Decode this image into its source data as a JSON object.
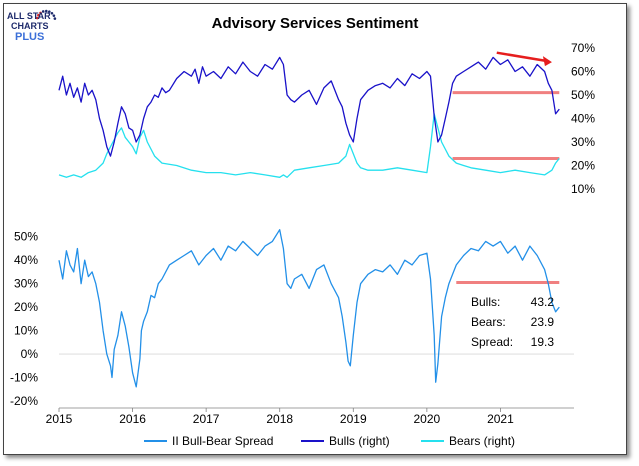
{
  "logo": {
    "line1": "ALL STAR",
    "line2": "CHARTS",
    "line3": "PLUS",
    "brand_color": "#1d2a6b",
    "accent_color": "#3b6fd8",
    "dot_color": "#d62828"
  },
  "colors": {
    "spread": "#2390e8",
    "bulls": "#1a12c9",
    "bears": "#25e0ee",
    "highlight": "#f08080",
    "trend_arrow": "#e61e1e"
  },
  "chart_data": {
    "title": "Advisory Services Sentiment",
    "type": "line",
    "x_axis": {
      "min": 2015.0,
      "max": 2022.0,
      "ticks": [
        "2015",
        "2016",
        "2017",
        "2018",
        "2019",
        "2020",
        "2021"
      ],
      "tick_values": [
        2015,
        2016,
        2017,
        2018,
        2019,
        2020,
        2021
      ]
    },
    "top_panel": {
      "axis": "right",
      "ylim": [
        10,
        70
      ],
      "tick_labels": [
        "70%",
        "60%",
        "50%",
        "40%",
        "30%",
        "20%",
        "10%"
      ],
      "tick_values": [
        70,
        60,
        50,
        40,
        30,
        20,
        10
      ],
      "series": [
        {
          "name": "Bulls (right)",
          "x": [
            2015.0,
            2015.05,
            2015.1,
            2015.15,
            2015.2,
            2015.25,
            2015.3,
            2015.35,
            2015.4,
            2015.45,
            2015.5,
            2015.55,
            2015.6,
            2015.65,
            2015.7,
            2015.75,
            2015.8,
            2015.85,
            2015.9,
            2015.95,
            2016.0,
            2016.05,
            2016.1,
            2016.15,
            2016.2,
            2016.25,
            2016.3,
            2016.35,
            2016.4,
            2016.45,
            2016.5,
            2016.6,
            2016.7,
            2016.8,
            2016.85,
            2016.9,
            2016.95,
            2017.0,
            2017.1,
            2017.2,
            2017.3,
            2017.4,
            2017.5,
            2017.6,
            2017.7,
            2017.8,
            2017.9,
            2018.0,
            2018.05,
            2018.1,
            2018.15,
            2018.2,
            2018.3,
            2018.4,
            2018.5,
            2018.6,
            2018.7,
            2018.8,
            2018.85,
            2018.9,
            2018.95,
            2019.0,
            2019.05,
            2019.1,
            2019.2,
            2019.3,
            2019.4,
            2019.5,
            2019.6,
            2019.7,
            2019.8,
            2019.9,
            2020.0,
            2020.05,
            2020.1,
            2020.15,
            2020.2,
            2020.25,
            2020.3,
            2020.35,
            2020.4,
            2020.5,
            2020.6,
            2020.7,
            2020.8,
            2020.9,
            2021.0,
            2021.1,
            2021.2,
            2021.3,
            2021.4,
            2021.5,
            2021.6,
            2021.65,
            2021.7,
            2021.75,
            2021.8
          ],
          "values": [
            52,
            58,
            50,
            55,
            49,
            53,
            47,
            55,
            50,
            52,
            48,
            40,
            35,
            28,
            24,
            30,
            38,
            45,
            42,
            36,
            35,
            30,
            33,
            40,
            45,
            47,
            50,
            49,
            53,
            51,
            52,
            57,
            60,
            58,
            61,
            55,
            62,
            58,
            60,
            57,
            62,
            59,
            64,
            60,
            58,
            63,
            61,
            66,
            63,
            50,
            48,
            47,
            50,
            52,
            46,
            53,
            56,
            48,
            45,
            38,
            33,
            30,
            40,
            48,
            52,
            54,
            55,
            53,
            57,
            54,
            59,
            57,
            60,
            58,
            41,
            30,
            33,
            40,
            47,
            55,
            58,
            60,
            62,
            64,
            61,
            66,
            63,
            65,
            60,
            62,
            58,
            63,
            60,
            55,
            52,
            42,
            44
          ]
        },
        {
          "name": "Bears (right)",
          "x": [
            2015.0,
            2015.1,
            2015.2,
            2015.3,
            2015.4,
            2015.5,
            2015.6,
            2015.65,
            2015.7,
            2015.75,
            2015.8,
            2015.85,
            2015.9,
            2015.95,
            2016.0,
            2016.05,
            2016.1,
            2016.15,
            2016.2,
            2016.3,
            2016.4,
            2016.6,
            2016.8,
            2017.0,
            2017.2,
            2017.4,
            2017.6,
            2017.8,
            2018.0,
            2018.05,
            2018.1,
            2018.2,
            2018.4,
            2018.6,
            2018.8,
            2018.9,
            2018.95,
            2019.0,
            2019.05,
            2019.1,
            2019.2,
            2019.4,
            2019.6,
            2019.8,
            2020.0,
            2020.05,
            2020.1,
            2020.15,
            2020.2,
            2020.3,
            2020.4,
            2020.5,
            2020.6,
            2020.8,
            2021.0,
            2021.2,
            2021.4,
            2021.6,
            2021.7,
            2021.75,
            2021.8
          ],
          "values": [
            16,
            15,
            16,
            15,
            17,
            18,
            21,
            25,
            28,
            31,
            34,
            36,
            32,
            30,
            28,
            25,
            32,
            35,
            30,
            24,
            21,
            20,
            18,
            17,
            17,
            16,
            17,
            16,
            15,
            16,
            15,
            18,
            19,
            20,
            21,
            24,
            29,
            25,
            21,
            19,
            18,
            18,
            19,
            18,
            17,
            28,
            42,
            36,
            30,
            24,
            21,
            20,
            19,
            18,
            17,
            18,
            17,
            16,
            18,
            21,
            23
          ]
        }
      ]
    },
    "bottom_panel": {
      "axis": "left",
      "ylim": [
        -20,
        55
      ],
      "tick_labels": [
        "50%",
        "40%",
        "30%",
        "20%",
        "10%",
        "0%",
        "-10%",
        "-20%"
      ],
      "tick_values": [
        50,
        40,
        30,
        20,
        10,
        0,
        -10,
        -20
      ],
      "series": [
        {
          "name": "II Bull-Bear Spread",
          "x": [
            2015.0,
            2015.05,
            2015.1,
            2015.15,
            2015.2,
            2015.25,
            2015.3,
            2015.35,
            2015.4,
            2015.45,
            2015.5,
            2015.55,
            2015.6,
            2015.65,
            2015.7,
            2015.72,
            2015.75,
            2015.8,
            2015.85,
            2015.9,
            2015.95,
            2016.0,
            2016.05,
            2016.1,
            2016.12,
            2016.15,
            2016.2,
            2016.25,
            2016.3,
            2016.35,
            2016.4,
            2016.5,
            2016.6,
            2016.7,
            2016.8,
            2016.9,
            2017.0,
            2017.1,
            2017.2,
            2017.3,
            2017.4,
            2017.5,
            2017.6,
            2017.7,
            2017.8,
            2017.9,
            2018.0,
            2018.05,
            2018.1,
            2018.15,
            2018.2,
            2018.3,
            2018.4,
            2018.5,
            2018.6,
            2018.7,
            2018.8,
            2018.85,
            2018.9,
            2018.93,
            2018.96,
            2019.0,
            2019.05,
            2019.1,
            2019.2,
            2019.3,
            2019.4,
            2019.5,
            2019.6,
            2019.7,
            2019.8,
            2019.9,
            2020.0,
            2020.05,
            2020.1,
            2020.12,
            2020.15,
            2020.2,
            2020.25,
            2020.3,
            2020.35,
            2020.4,
            2020.5,
            2020.6,
            2020.7,
            2020.8,
            2020.9,
            2021.0,
            2021.1,
            2021.2,
            2021.3,
            2021.4,
            2021.5,
            2021.6,
            2021.65,
            2021.7,
            2021.75,
            2021.8
          ],
          "values": [
            40,
            32,
            44,
            38,
            35,
            45,
            30,
            40,
            33,
            35,
            30,
            22,
            10,
            0,
            -5,
            -10,
            2,
            8,
            18,
            12,
            3,
            -8,
            -14,
            -2,
            10,
            14,
            18,
            25,
            24,
            30,
            32,
            38,
            40,
            42,
            44,
            38,
            42,
            45,
            40,
            46,
            44,
            48,
            45,
            42,
            46,
            48,
            53,
            45,
            30,
            28,
            32,
            34,
            28,
            36,
            38,
            30,
            24,
            16,
            5,
            -3,
            -5,
            8,
            22,
            30,
            34,
            36,
            35,
            38,
            34,
            40,
            38,
            42,
            43,
            32,
            8,
            -12,
            -4,
            16,
            24,
            30,
            34,
            38,
            42,
            45,
            44,
            48,
            46,
            48,
            43,
            46,
            40,
            46,
            42,
            36,
            30,
            22,
            18,
            20
          ]
        }
      ]
    },
    "highlights": [
      {
        "panel": "top",
        "value": 51,
        "x_start": 2020.35,
        "x_end": 2021.8
      },
      {
        "panel": "top",
        "value": 23,
        "x_start": 2020.35,
        "x_end": 2021.8
      },
      {
        "panel": "bottom",
        "value": 30.5,
        "x_start": 2020.4,
        "x_end": 2021.8
      }
    ],
    "trend_arrow": {
      "panel": "top",
      "x_start": 2020.95,
      "y_start": 68,
      "x_end": 2021.7,
      "y_end": 64
    },
    "stats": [
      {
        "label": "Bulls:",
        "value": "43.2"
      },
      {
        "label": "Bears:",
        "value": "23.9"
      },
      {
        "label": "Spread:",
        "value": "19.3"
      }
    ],
    "legend": [
      {
        "label": "II Bull-Bear Spread",
        "series": "spread"
      },
      {
        "label": "Bulls (right)",
        "series": "bulls"
      },
      {
        "label": "Bears (right)",
        "series": "bears"
      }
    ]
  }
}
